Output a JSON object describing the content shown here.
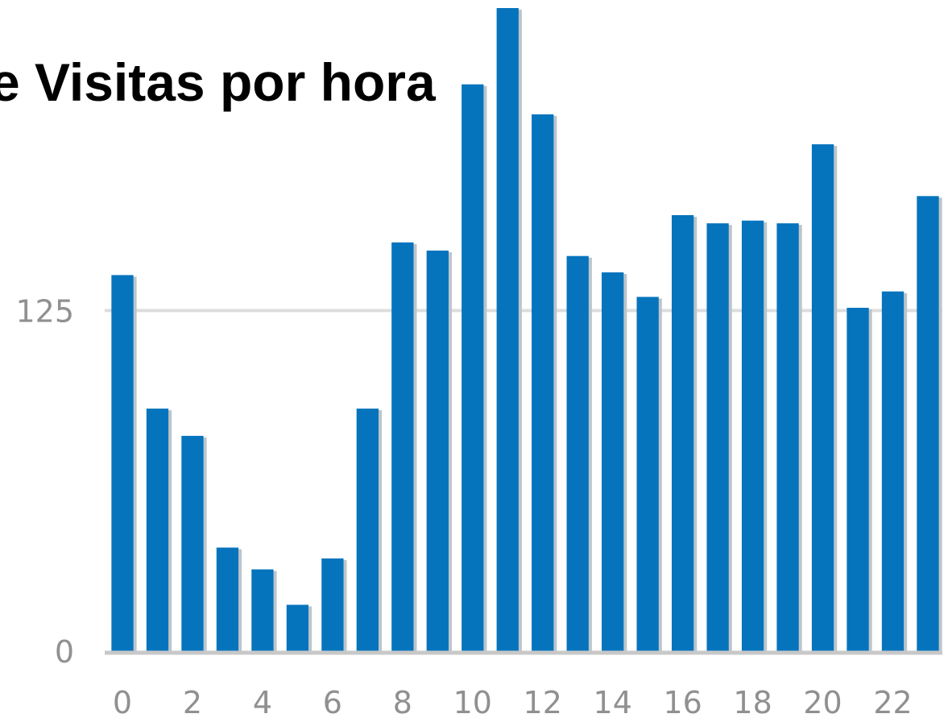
{
  "chart_data": {
    "type": "bar",
    "title": "e Visitas por hora",
    "xlabel": "",
    "ylabel": "",
    "categories": [
      "0",
      "1",
      "2",
      "3",
      "4",
      "5",
      "6",
      "7",
      "8",
      "9",
      "10",
      "11",
      "12",
      "13",
      "14",
      "15",
      "16",
      "17",
      "18",
      "19",
      "20",
      "21",
      "22",
      "23"
    ],
    "x_tick_labels": [
      "0",
      "2",
      "4",
      "6",
      "8",
      "10",
      "12",
      "14",
      "16",
      "18",
      "20",
      "22"
    ],
    "y_tick_labels": [
      "0",
      "125"
    ],
    "y_ticks": [
      0,
      125
    ],
    "values": [
      138,
      89,
      79,
      38,
      30,
      17,
      34,
      89,
      150,
      147,
      208,
      236,
      197,
      145,
      139,
      130,
      160,
      157,
      158,
      157,
      186,
      126,
      132,
      167
    ],
    "ylim": [
      0,
      236
    ],
    "grid": true,
    "bar_color": "#0674bd",
    "bar_shadow_color": "#bcc5cc",
    "grid_color": "#dddddd",
    "axis_color": "#c8c8c8"
  }
}
